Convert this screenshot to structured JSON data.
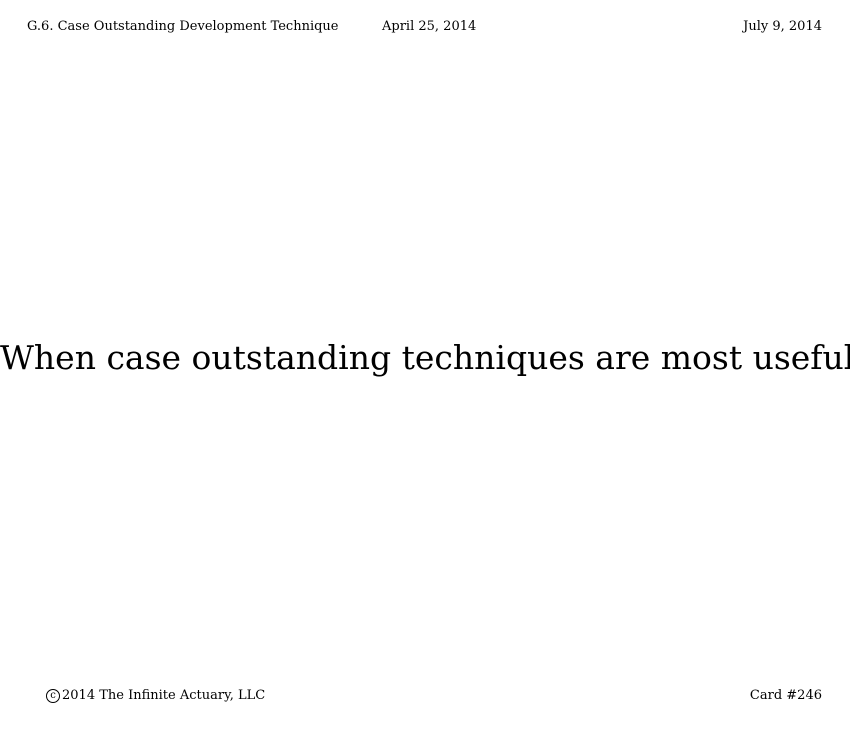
{
  "header": {
    "left": "G.6. Case Outstanding Development Technique",
    "middle": "April 25, 2014",
    "right": "July 9, 2014"
  },
  "card": {
    "question": "When case outstanding techniques are most useful"
  },
  "footer": {
    "copyright_symbol": "c",
    "copyright_text": "2014 The Infinite Actuary, LLC",
    "card_number": "Card #246"
  }
}
